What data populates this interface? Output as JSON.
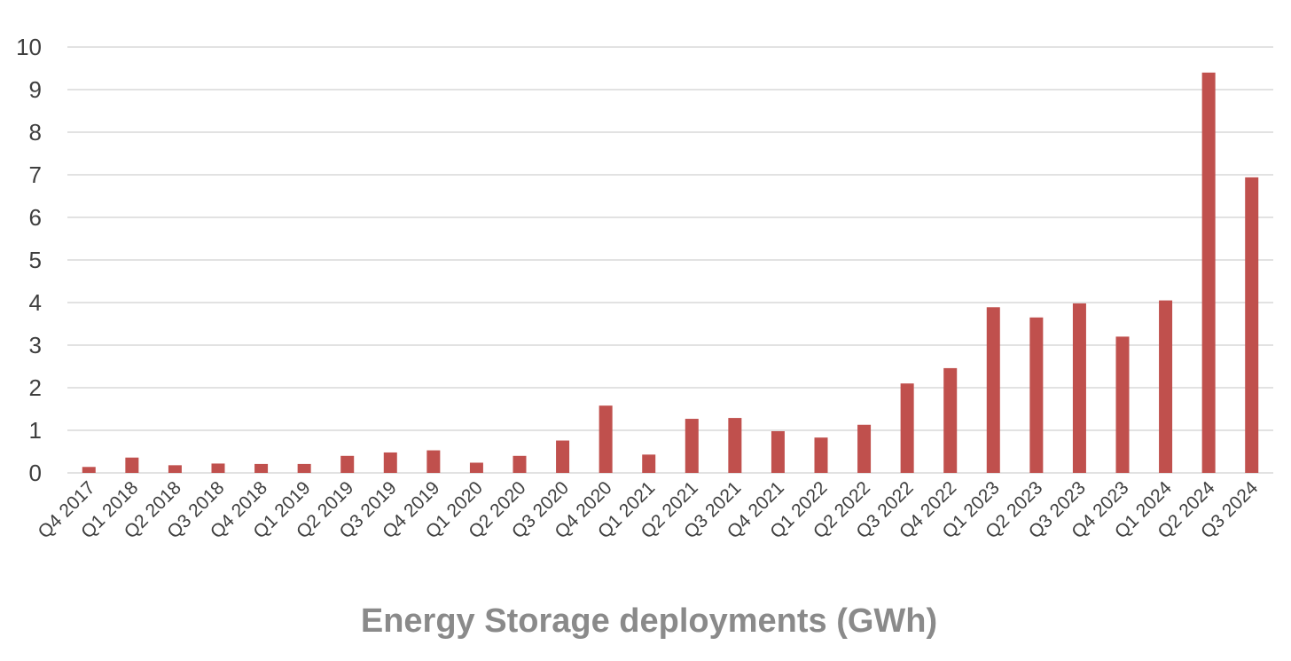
{
  "chart_data": {
    "type": "bar",
    "title": "Energy Storage deployments (GWh)",
    "xlabel": "",
    "ylabel": "",
    "ylim": [
      0,
      10
    ],
    "yticks": [
      "0",
      "1",
      "2",
      "3",
      "4",
      "5",
      "6",
      "7",
      "8",
      "9",
      "10"
    ],
    "grid": true,
    "bar_color": "#c0504d",
    "categories": [
      "Q4 2017",
      "Q1 2018",
      "Q2 2018",
      "Q3 2018",
      "Q4 2018",
      "Q1 2019",
      "Q2 2019",
      "Q3 2019",
      "Q4 2019",
      "Q1 2020",
      "Q2 2020",
      "Q3 2020",
      "Q4 2020",
      "Q1 2021",
      "Q2 2021",
      "Q3 2021",
      "Q4 2021",
      "Q1 2022",
      "Q2 2022",
      "Q3 2022",
      "Q4 2022",
      "Q1 2023",
      "Q2 2023",
      "Q3 2023",
      "Q4 2023",
      "Q1 2024",
      "Q2 2024",
      "Q3 2024"
    ],
    "values": [
      0.14,
      0.36,
      0.18,
      0.22,
      0.21,
      0.21,
      0.4,
      0.48,
      0.53,
      0.24,
      0.4,
      0.76,
      1.58,
      0.43,
      1.27,
      1.29,
      0.98,
      0.83,
      1.13,
      2.1,
      2.46,
      3.89,
      3.65,
      3.98,
      3.2,
      4.05,
      9.4,
      6.94
    ]
  }
}
